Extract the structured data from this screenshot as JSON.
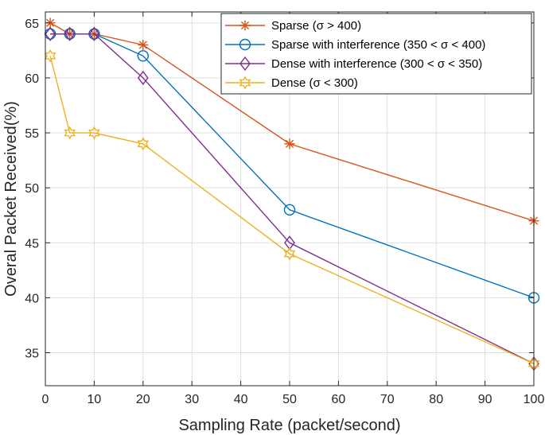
{
  "chart_data": {
    "type": "line",
    "title": "",
    "xlabel": "Sampling Rate (packet/second)",
    "ylabel": "Overal Packet Received(%)",
    "xlim": [
      0,
      100
    ],
    "ylim": [
      32,
      66
    ],
    "xticks": [
      0,
      10,
      20,
      30,
      40,
      50,
      60,
      70,
      80,
      90,
      100
    ],
    "yticks": [
      35,
      40,
      45,
      50,
      55,
      60,
      65
    ],
    "grid": true,
    "legend_position": "top-right",
    "x": [
      1,
      5,
      10,
      20,
      50,
      100
    ],
    "series": [
      {
        "name": "Sparse (σ > 400)",
        "marker": "asterisk",
        "color": "#D95319",
        "values": [
          65,
          64,
          64,
          63,
          54,
          47
        ]
      },
      {
        "name": "Sparse with interference (350 < σ < 400)",
        "marker": "circle",
        "color": "#0072BD",
        "values": [
          64,
          64,
          64,
          62,
          48,
          40
        ]
      },
      {
        "name": "Dense with interference (300 < σ < 350)",
        "marker": "diamond",
        "color": "#7E2F8E",
        "values": [
          64,
          64,
          64,
          60,
          45,
          34
        ]
      },
      {
        "name": "Dense (σ < 300)",
        "marker": "hexagram",
        "color": "#EDB120",
        "values": [
          62,
          55,
          55,
          54,
          44,
          34
        ]
      }
    ]
  }
}
